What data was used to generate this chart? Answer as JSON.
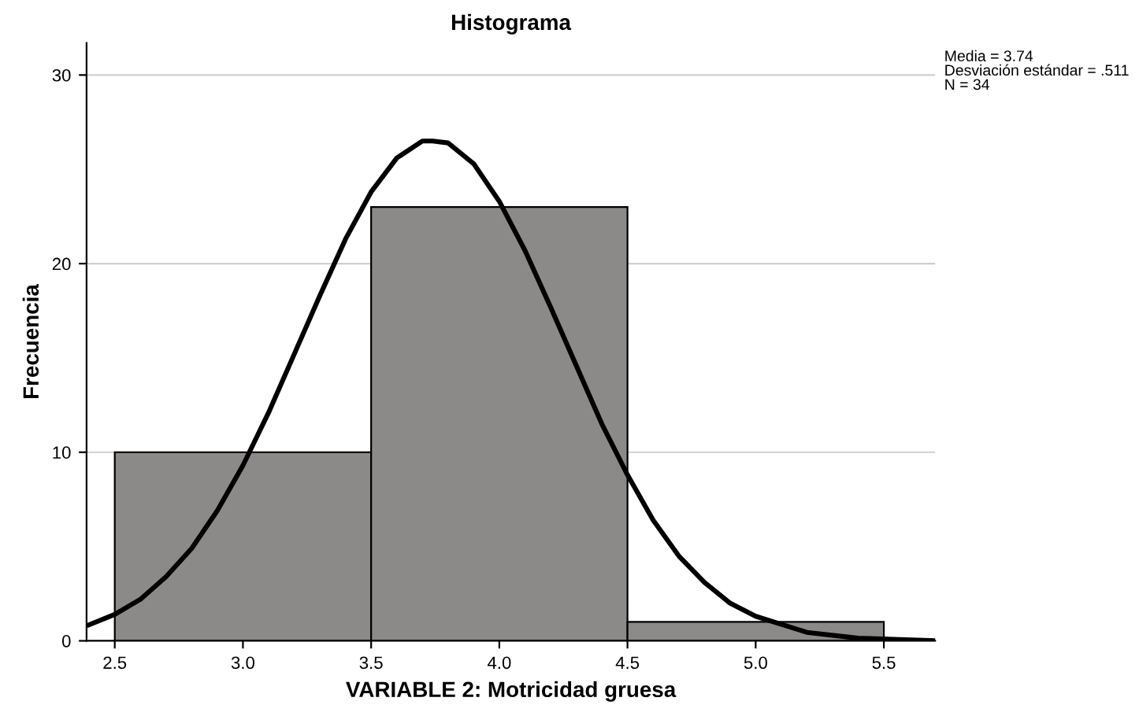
{
  "chart_data": {
    "type": "histogram",
    "title": "Histograma",
    "xlabel": "VARIABLE 2: Motricidad gruesa",
    "ylabel": "Frecuencia",
    "bins": [
      2.5,
      3.5,
      4.5,
      5.5
    ],
    "values": [
      10,
      23,
      1
    ],
    "color": "#8c8989",
    "series": [
      {
        "type": "line",
        "color": "#000000",
        "x": [
          2.4,
          2.5,
          2.6,
          2.7,
          2.8,
          2.9,
          3.0,
          3.1,
          3.2,
          3.3,
          3.4,
          3.5,
          3.6,
          3.7,
          3.74,
          3.8,
          3.9,
          4.0,
          4.1,
          4.2,
          4.3,
          4.4,
          4.5,
          4.6,
          4.7,
          4.8,
          4.9,
          5.0,
          5.2,
          5.4,
          5.7
        ],
        "values": [
          0.85,
          1.4,
          2.2,
          3.4,
          4.9,
          6.9,
          9.3,
          12.1,
          15.2,
          18.3,
          21.3,
          23.8,
          25.6,
          26.5,
          26.5,
          26.4,
          25.3,
          23.3,
          20.7,
          17.7,
          14.6,
          11.5,
          8.8,
          6.4,
          4.5,
          3.1,
          2.0,
          1.3,
          0.45,
          0.14,
          0.01
        ]
      }
    ],
    "xlim": [
      2.39,
      5.7
    ],
    "ylim": [
      0,
      31.7
    ],
    "xticks": [
      2.5,
      {
        "value": 3,
        "label": "3.0"
      },
      {
        "value": 3.5,
        "label": "3.5"
      },
      {
        "value": 4,
        "label": "4.0"
      },
      {
        "value": 4.5,
        "label": "4.5"
      },
      {
        "value": 5,
        "label": "5.0"
      },
      {
        "value": 5.5,
        "label": "5.5"
      }
    ],
    "yticks": [
      0,
      10,
      20,
      30
    ],
    "grid": "y",
    "annotations": [
      "Media = 3.74\nDesviación estándar = .511\nN = 34"
    ]
  }
}
